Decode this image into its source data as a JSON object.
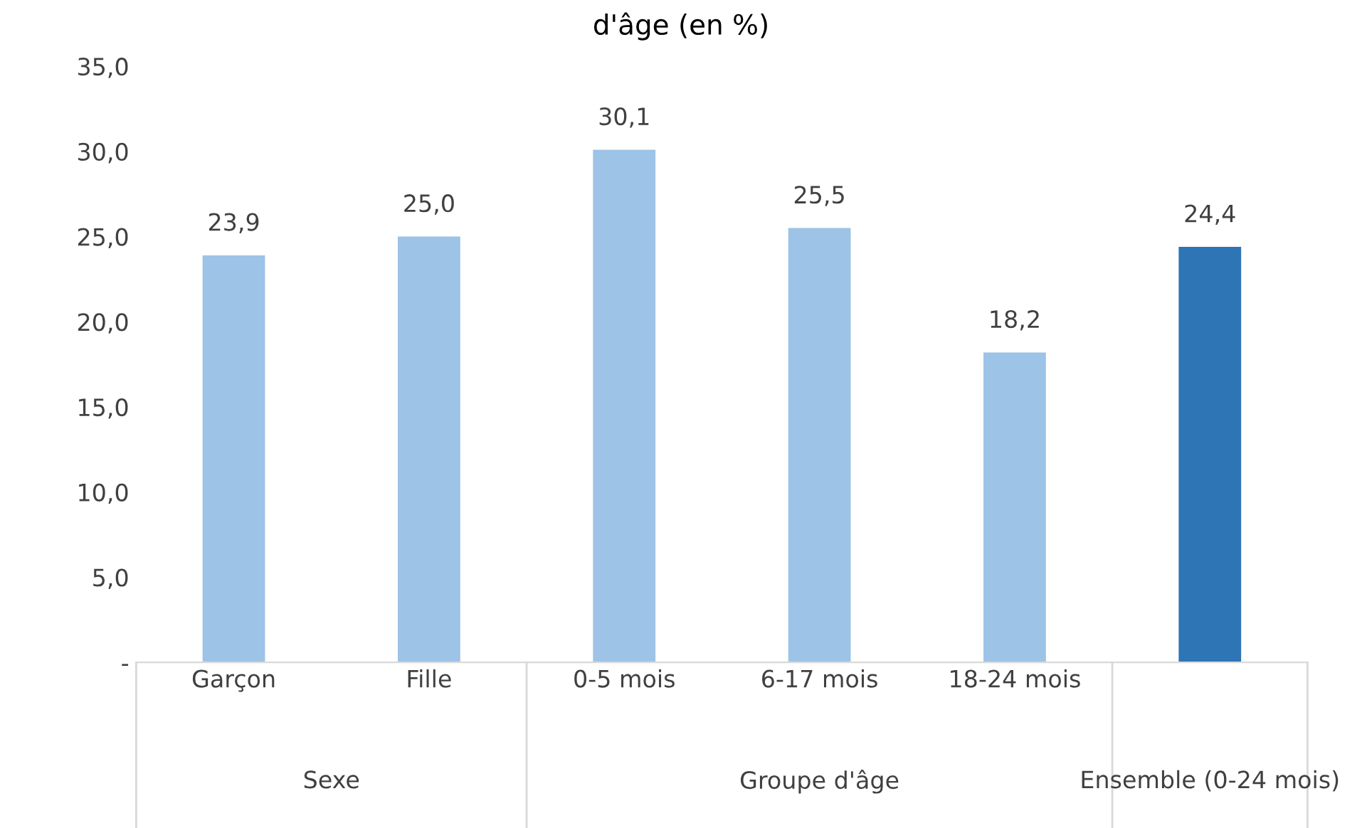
{
  "chart_data": {
    "type": "bar",
    "title": "d'âge (en %)",
    "categories": [
      "Garçon",
      "Fille",
      "0-5 mois",
      "6-17 mois",
      "18-24 mois",
      null
    ],
    "values": [
      23.9,
      25.0,
      30.1,
      25.5,
      18.2,
      24.4
    ],
    "colors": [
      "#9dc3e6",
      "#9dc3e6",
      "#9dc3e6",
      "#9dc3e6",
      "#9dc3e6",
      "#2e75b6"
    ],
    "value_labels": [
      "23,9",
      "25,0",
      "30,1",
      "25,5",
      "18,2",
      "24,4"
    ],
    "annotations": [
      "Sexe",
      "Groupe d'âge",
      "Ensemble (0-24 mois)"
    ],
    "ylim": [
      0,
      35
    ],
    "yticks": [
      {
        "value": 0,
        "label": "-"
      },
      {
        "value": 5,
        "label": "5,0"
      },
      {
        "value": 10,
        "label": "10,0"
      },
      {
        "value": 15,
        "label": "15,0"
      },
      {
        "value": 20,
        "label": "20,0"
      },
      {
        "value": 25,
        "label": "25,0"
      },
      {
        "value": 30,
        "label": "30,0"
      },
      {
        "value": 35,
        "label": "35,0"
      }
    ],
    "grid": false,
    "legend": false
  }
}
